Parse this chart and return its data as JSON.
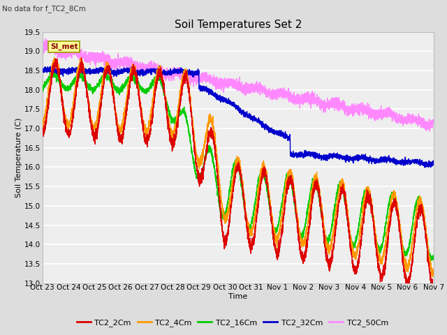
{
  "title": "Soil Temperatures Set 2",
  "no_data_label": "No data for f_TC2_8Cm",
  "xlabel": "Time",
  "ylabel": "Soil Temperature (C)",
  "ylim": [
    13.0,
    19.5
  ],
  "yticks": [
    13.0,
    13.5,
    14.0,
    14.5,
    15.0,
    15.5,
    16.0,
    16.5,
    17.0,
    17.5,
    18.0,
    18.5,
    19.0,
    19.5
  ],
  "x_tick_labels": [
    "Oct 23",
    "Oct 24",
    "Oct 25",
    "Oct 26",
    "Oct 27",
    "Oct 28",
    "Oct 29",
    "Oct 30",
    "Oct 31",
    "Nov 1",
    "Nov 2",
    "Nov 3",
    "Nov 4",
    "Nov 5",
    "Nov 6",
    "Nov 7"
  ],
  "num_points": 4800,
  "legend_label": "SI_met",
  "series": {
    "TC2_2Cm": {
      "color": "#dd0000",
      "lw": 1.0
    },
    "TC2_4Cm": {
      "color": "#ff9900",
      "lw": 1.0
    },
    "TC2_16Cm": {
      "color": "#00cc00",
      "lw": 1.0
    },
    "TC2_32Cm": {
      "color": "#0000cc",
      "lw": 1.0
    },
    "TC2_50Cm": {
      "color": "#ff88ff",
      "lw": 1.0
    }
  },
  "bg_color": "#dddddd",
  "plot_bg": "#eeeeee",
  "grid_color": "#ffffff",
  "title_fontsize": 11,
  "axis_fontsize": 8,
  "tick_fontsize": 7.5
}
